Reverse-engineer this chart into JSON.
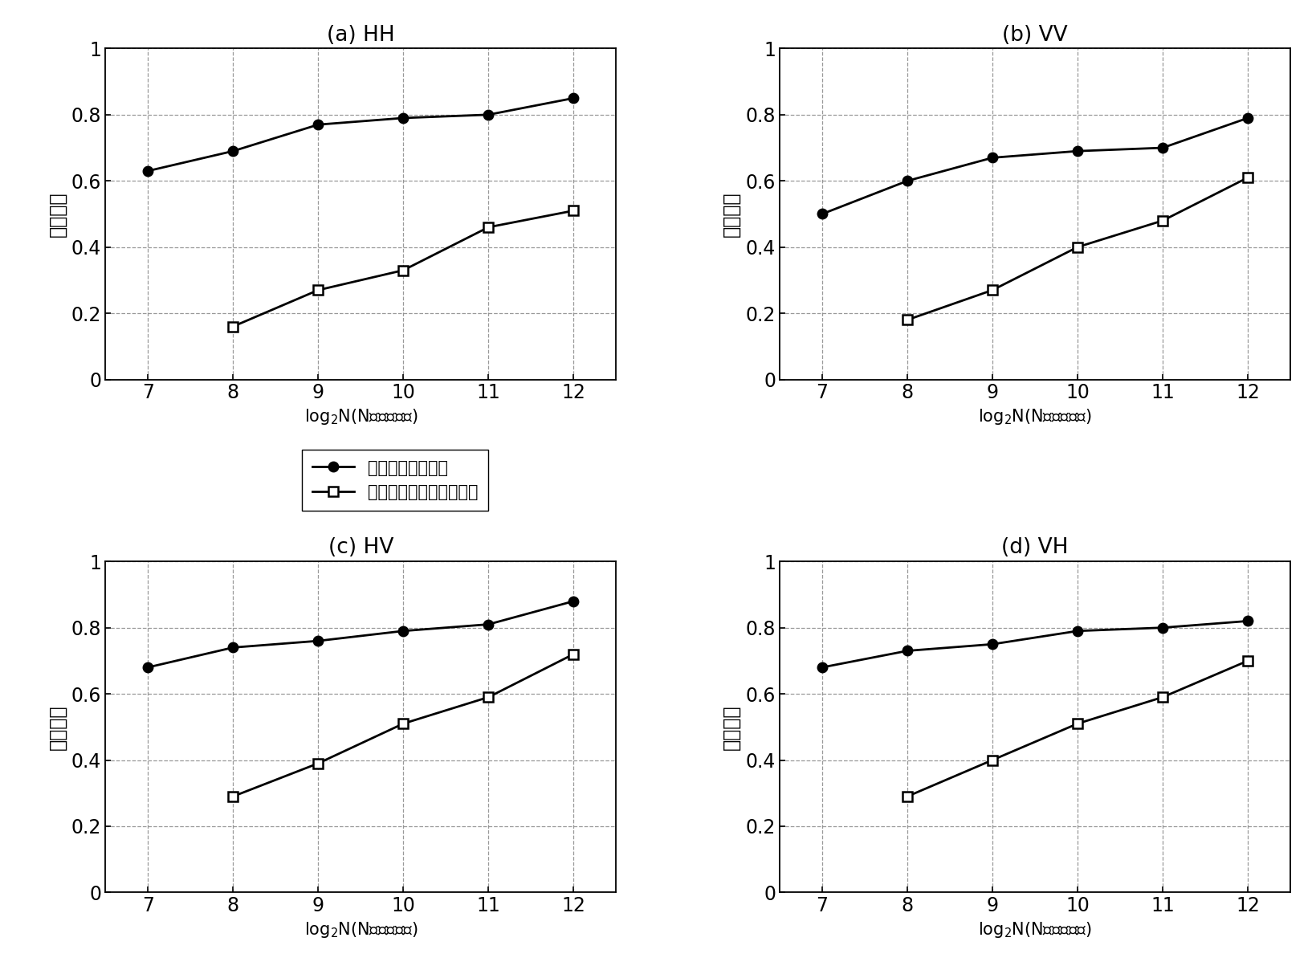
{
  "x_line1": [
    7,
    8,
    9,
    10,
    11,
    12
  ],
  "x_line2": [
    8,
    9,
    10,
    11,
    12
  ],
  "subplots": [
    {
      "title": "(a) HH",
      "line1": [
        0.63,
        0.69,
        0.77,
        0.79,
        0.8,
        0.85
      ],
      "line2": [
        0.16,
        0.27,
        0.33,
        0.46,
        0.51
      ]
    },
    {
      "title": "(b) VV",
      "line1": [
        0.5,
        0.6,
        0.67,
        0.69,
        0.7,
        0.79
      ],
      "line2": [
        0.18,
        0.27,
        0.4,
        0.48,
        0.61
      ]
    },
    {
      "title": "(c) HV",
      "line1": [
        0.68,
        0.74,
        0.76,
        0.79,
        0.81,
        0.88
      ],
      "line2": [
        0.29,
        0.39,
        0.51,
        0.59,
        0.72
      ]
    },
    {
      "title": "(d) VH",
      "line1": [
        0.68,
        0.73,
        0.75,
        0.79,
        0.8,
        0.82
      ],
      "line2": [
        0.29,
        0.4,
        0.51,
        0.59,
        0.7
      ]
    }
  ],
  "legend_line1": "本发明的检测方法",
  "legend_line2": "现有基于分形的检测方法",
  "xlabel": "log$_2$N(N为脉冲总数)",
  "ylabel": "检测概率",
  "ylim": [
    0,
    1
  ],
  "yticks": [
    0,
    0.2,
    0.4,
    0.6,
    0.8,
    1
  ],
  "xticks": [
    7,
    8,
    9,
    10,
    11,
    12
  ],
  "line_color": "#000000",
  "line_width": 2.0,
  "marker_size": 9,
  "background_color": "#ffffff"
}
